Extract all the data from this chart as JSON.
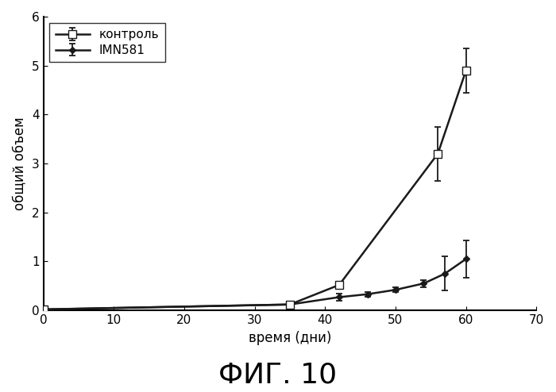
{
  "control_x": [
    0,
    35,
    42,
    56,
    60
  ],
  "control_y": [
    0.02,
    0.12,
    0.52,
    3.2,
    4.9
  ],
  "control_yerr": [
    0.01,
    0.03,
    0.05,
    0.55,
    0.45
  ],
  "mn581_x": [
    0,
    35,
    42,
    46,
    50,
    54,
    57,
    60
  ],
  "mn581_y": [
    0.02,
    0.12,
    0.27,
    0.33,
    0.42,
    0.55,
    0.75,
    1.05
  ],
  "mn581_yerr": [
    0.01,
    0.03,
    0.08,
    0.05,
    0.05,
    0.07,
    0.35,
    0.38
  ],
  "xlabel": "время (дни)",
  "ylabel": "общий объем",
  "title": "ФИГ. 10",
  "legend_control": "контроль",
  "legend_mn581": "IMN581",
  "xlim": [
    0,
    70
  ],
  "ylim": [
    0,
    6
  ],
  "xticks": [
    0,
    10,
    20,
    30,
    40,
    50,
    60,
    70
  ],
  "yticks": [
    0,
    1,
    2,
    3,
    4,
    5,
    6
  ],
  "background_color": "#ffffff",
  "line_color": "#1a1a1a"
}
